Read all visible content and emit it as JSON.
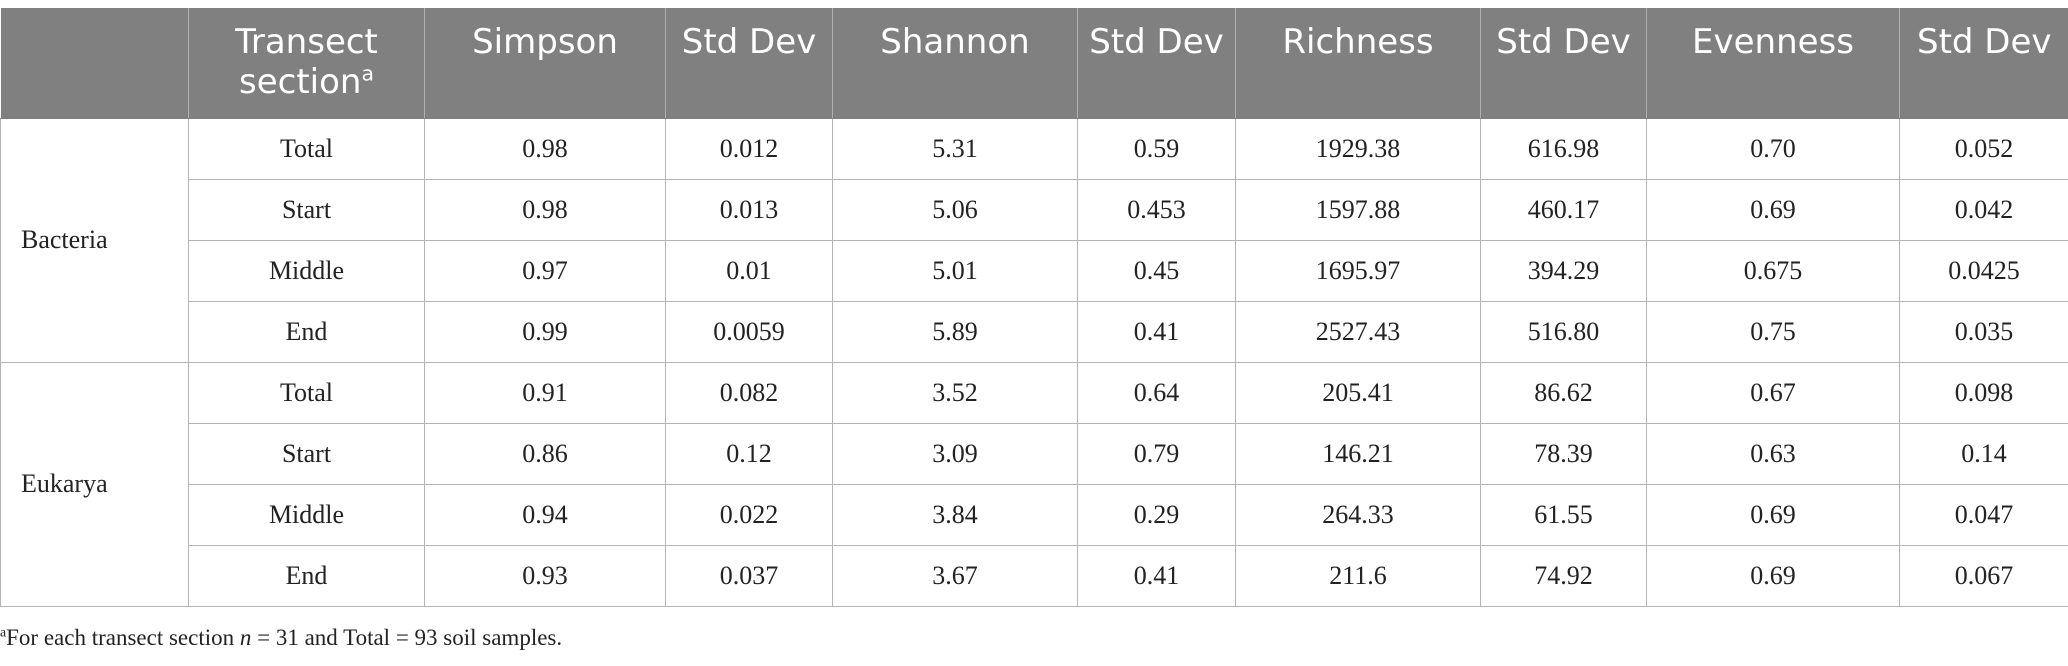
{
  "header": {
    "col0": "",
    "transect_label": "Transect section",
    "transect_sup": "a",
    "simpson": "Simpson",
    "std_dev": "Std Dev",
    "shannon": "Shannon",
    "richness": "Richness",
    "evenness": "Evenness"
  },
  "groups": [
    {
      "name": "Bacteria",
      "rows": [
        {
          "section": "Total",
          "simpson": "0.98",
          "simpson_sd": "0.012",
          "shannon": "5.31",
          "shannon_sd": "0.59",
          "richness": "1929.38",
          "richness_sd": "616.98",
          "evenness": "0.70",
          "evenness_sd": "0.052"
        },
        {
          "section": "Start",
          "simpson": "0.98",
          "simpson_sd": "0.013",
          "shannon": "5.06",
          "shannon_sd": "0.453",
          "richness": "1597.88",
          "richness_sd": "460.17",
          "evenness": "0.69",
          "evenness_sd": "0.042"
        },
        {
          "section": "Middle",
          "simpson": "0.97",
          "simpson_sd": "0.01",
          "shannon": "5.01",
          "shannon_sd": "0.45",
          "richness": "1695.97",
          "richness_sd": "394.29",
          "evenness": "0.675",
          "evenness_sd": "0.0425"
        },
        {
          "section": "End",
          "simpson": "0.99",
          "simpson_sd": "0.0059",
          "shannon": "5.89",
          "shannon_sd": "0.41",
          "richness": "2527.43",
          "richness_sd": "516.80",
          "evenness": "0.75",
          "evenness_sd": "0.035"
        }
      ]
    },
    {
      "name": "Eukarya",
      "rows": [
        {
          "section": "Total",
          "simpson": "0.91",
          "simpson_sd": "0.082",
          "shannon": "3.52",
          "shannon_sd": "0.64",
          "richness": "205.41",
          "richness_sd": "86.62",
          "evenness": "0.67",
          "evenness_sd": "0.098"
        },
        {
          "section": "Start",
          "simpson": "0.86",
          "simpson_sd": "0.12",
          "shannon": "3.09",
          "shannon_sd": "0.79",
          "richness": "146.21",
          "richness_sd": "78.39",
          "evenness": "0.63",
          "evenness_sd": "0.14"
        },
        {
          "section": "Middle",
          "simpson": "0.94",
          "simpson_sd": "0.022",
          "shannon": "3.84",
          "shannon_sd": "0.29",
          "richness": "264.33",
          "richness_sd": "61.55",
          "evenness": "0.69",
          "evenness_sd": "0.047"
        },
        {
          "section": "End",
          "simpson": "0.93",
          "simpson_sd": "0.037",
          "shannon": "3.67",
          "shannon_sd": "0.41",
          "richness": "211.6",
          "richness_sd": "74.92",
          "evenness": "0.69",
          "evenness_sd": "0.067"
        }
      ]
    }
  ],
  "footnote": {
    "marker": "a",
    "text_before": "For each transect section ",
    "var": "n",
    "text_after": " = 31 and Total = 93 soil samples."
  },
  "colors": {
    "header_bg": "#808080",
    "header_text": "#ffffff",
    "grid": "#b4b4b4"
  }
}
